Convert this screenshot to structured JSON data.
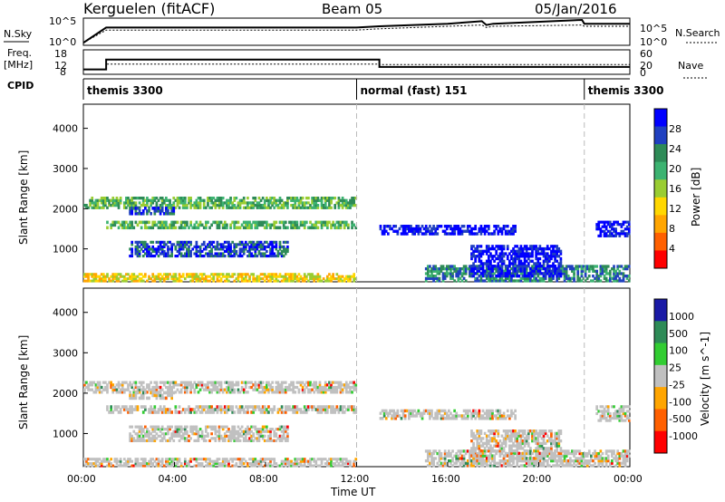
{
  "header": {
    "site": "Kerguelen (fitACF)",
    "beam": "Beam 05",
    "date": "05/Jan/2016"
  },
  "left_labels": {
    "nsky": "N.Sky",
    "freq_line1": "Freq.",
    "freq_line2": "[MHz]",
    "cpid": "CPID"
  },
  "right_labels": {
    "nsearch": "N.Search",
    "nave": "Nave"
  },
  "colors": {
    "power_scale": [
      "#0000ff",
      "#2040c0",
      "#2e8b57",
      "#3cb371",
      "#9acd32",
      "#ffd700",
      "#ffa500",
      "#ff6000",
      "#ff0000"
    ],
    "velocity_scale": [
      "#1a1aa6",
      "#2e8b57",
      "#32cd32",
      "#c0c0c0",
      "#ffa500",
      "#ff6000",
      "#ff0000"
    ],
    "ground_scatter": "#c0c0c0"
  },
  "chart_data": [
    {
      "type": "line",
      "name": "noise-panel",
      "ylabel_left": "N.Sky",
      "ylabel_right": "N.Search",
      "yticks_left": [
        "10^5",
        "10^0"
      ],
      "yticks_right": [
        "10^5",
        "10^0"
      ],
      "x": [
        0,
        1,
        12,
        13,
        16,
        17.5,
        17.7,
        18,
        21.9,
        22,
        24
      ],
      "nsky_level": [
        0.1,
        0.7,
        0.7,
        0.75,
        0.85,
        0.95,
        0.8,
        0.85,
        1.0,
        0.85,
        0.85
      ],
      "nsearch_level": [
        0.1,
        0.6,
        0.6,
        0.65,
        0.75,
        0.8,
        0.7,
        0.75,
        0.8,
        0.75,
        0.75
      ]
    },
    {
      "type": "line",
      "name": "frequency-panel",
      "ylabel": "Freq. [MHz]",
      "yticks_left": [
        "18",
        "12",
        "8"
      ],
      "yticks_right": [
        "60",
        "20",
        "0"
      ],
      "freq_x": [
        0,
        1,
        1,
        13,
        13,
        24
      ],
      "freq_mhz": [
        10,
        10,
        14,
        14,
        11,
        11
      ],
      "nave_x": [
        0,
        1,
        1,
        13,
        13,
        24
      ],
      "nave": [
        12,
        12,
        25,
        25,
        24,
        24
      ]
    },
    {
      "type": "table",
      "name": "cpid-panel",
      "segments": [
        {
          "start": 0,
          "end": 12,
          "label": "themis 3300"
        },
        {
          "start": 12,
          "end": 22,
          "label": "normal (fast) 151"
        },
        {
          "start": 22,
          "end": 24,
          "label": "themis 3300"
        }
      ]
    },
    {
      "type": "heatmap",
      "name": "power-panel",
      "ylabel": "Slant Range [km]",
      "yticks": [
        "1000",
        "2000",
        "3000",
        "4000"
      ],
      "ylim": [
        180,
        4600
      ],
      "xlim": [
        0,
        24
      ],
      "colorbar_label": "Power [dB]",
      "colorbar_ticks": [
        "28",
        "24",
        "20",
        "16",
        "12",
        "8",
        "4"
      ],
      "bands": [
        {
          "x0": 0,
          "x1": 12,
          "y0": 2000,
          "y1": 2300,
          "level": 5
        },
        {
          "x0": 2,
          "x1": 4,
          "y0": 1850,
          "y1": 2050,
          "level": 7
        },
        {
          "x0": 1,
          "x1": 12,
          "y0": 1500,
          "y1": 1700,
          "level": 5
        },
        {
          "x0": 2,
          "x1": 9,
          "y0": 800,
          "y1": 1200,
          "level": 7
        },
        {
          "x0": 0,
          "x1": 12,
          "y0": 180,
          "y1": 400,
          "level": 3
        },
        {
          "x0": 13,
          "x1": 19,
          "y0": 1350,
          "y1": 1600,
          "level": 8
        },
        {
          "x0": 15,
          "x1": 24,
          "y0": 180,
          "y1": 600,
          "level": 6
        },
        {
          "x0": 17,
          "x1": 21,
          "y0": 300,
          "y1": 1100,
          "level": 8
        },
        {
          "x0": 22.5,
          "x1": 24,
          "y0": 1300,
          "y1": 1700,
          "level": 8
        }
      ]
    },
    {
      "type": "heatmap",
      "name": "velocity-panel",
      "ylabel": "Slant Range [km]",
      "yticks": [
        "1000",
        "2000",
        "3000",
        "4000"
      ],
      "ylim": [
        180,
        4600
      ],
      "xlim": [
        0,
        24
      ],
      "xticks": [
        "00:00",
        "04:00",
        "08:00",
        "12:00",
        "16:00",
        "20:00",
        "00:00"
      ],
      "xlabel": "Time UT",
      "colorbar_label": "Velocity [m s^-1]",
      "colorbar_ticks": [
        "1000",
        "500",
        "100",
        "25",
        "-25",
        "-100",
        "-500",
        "-1000"
      ]
    }
  ]
}
